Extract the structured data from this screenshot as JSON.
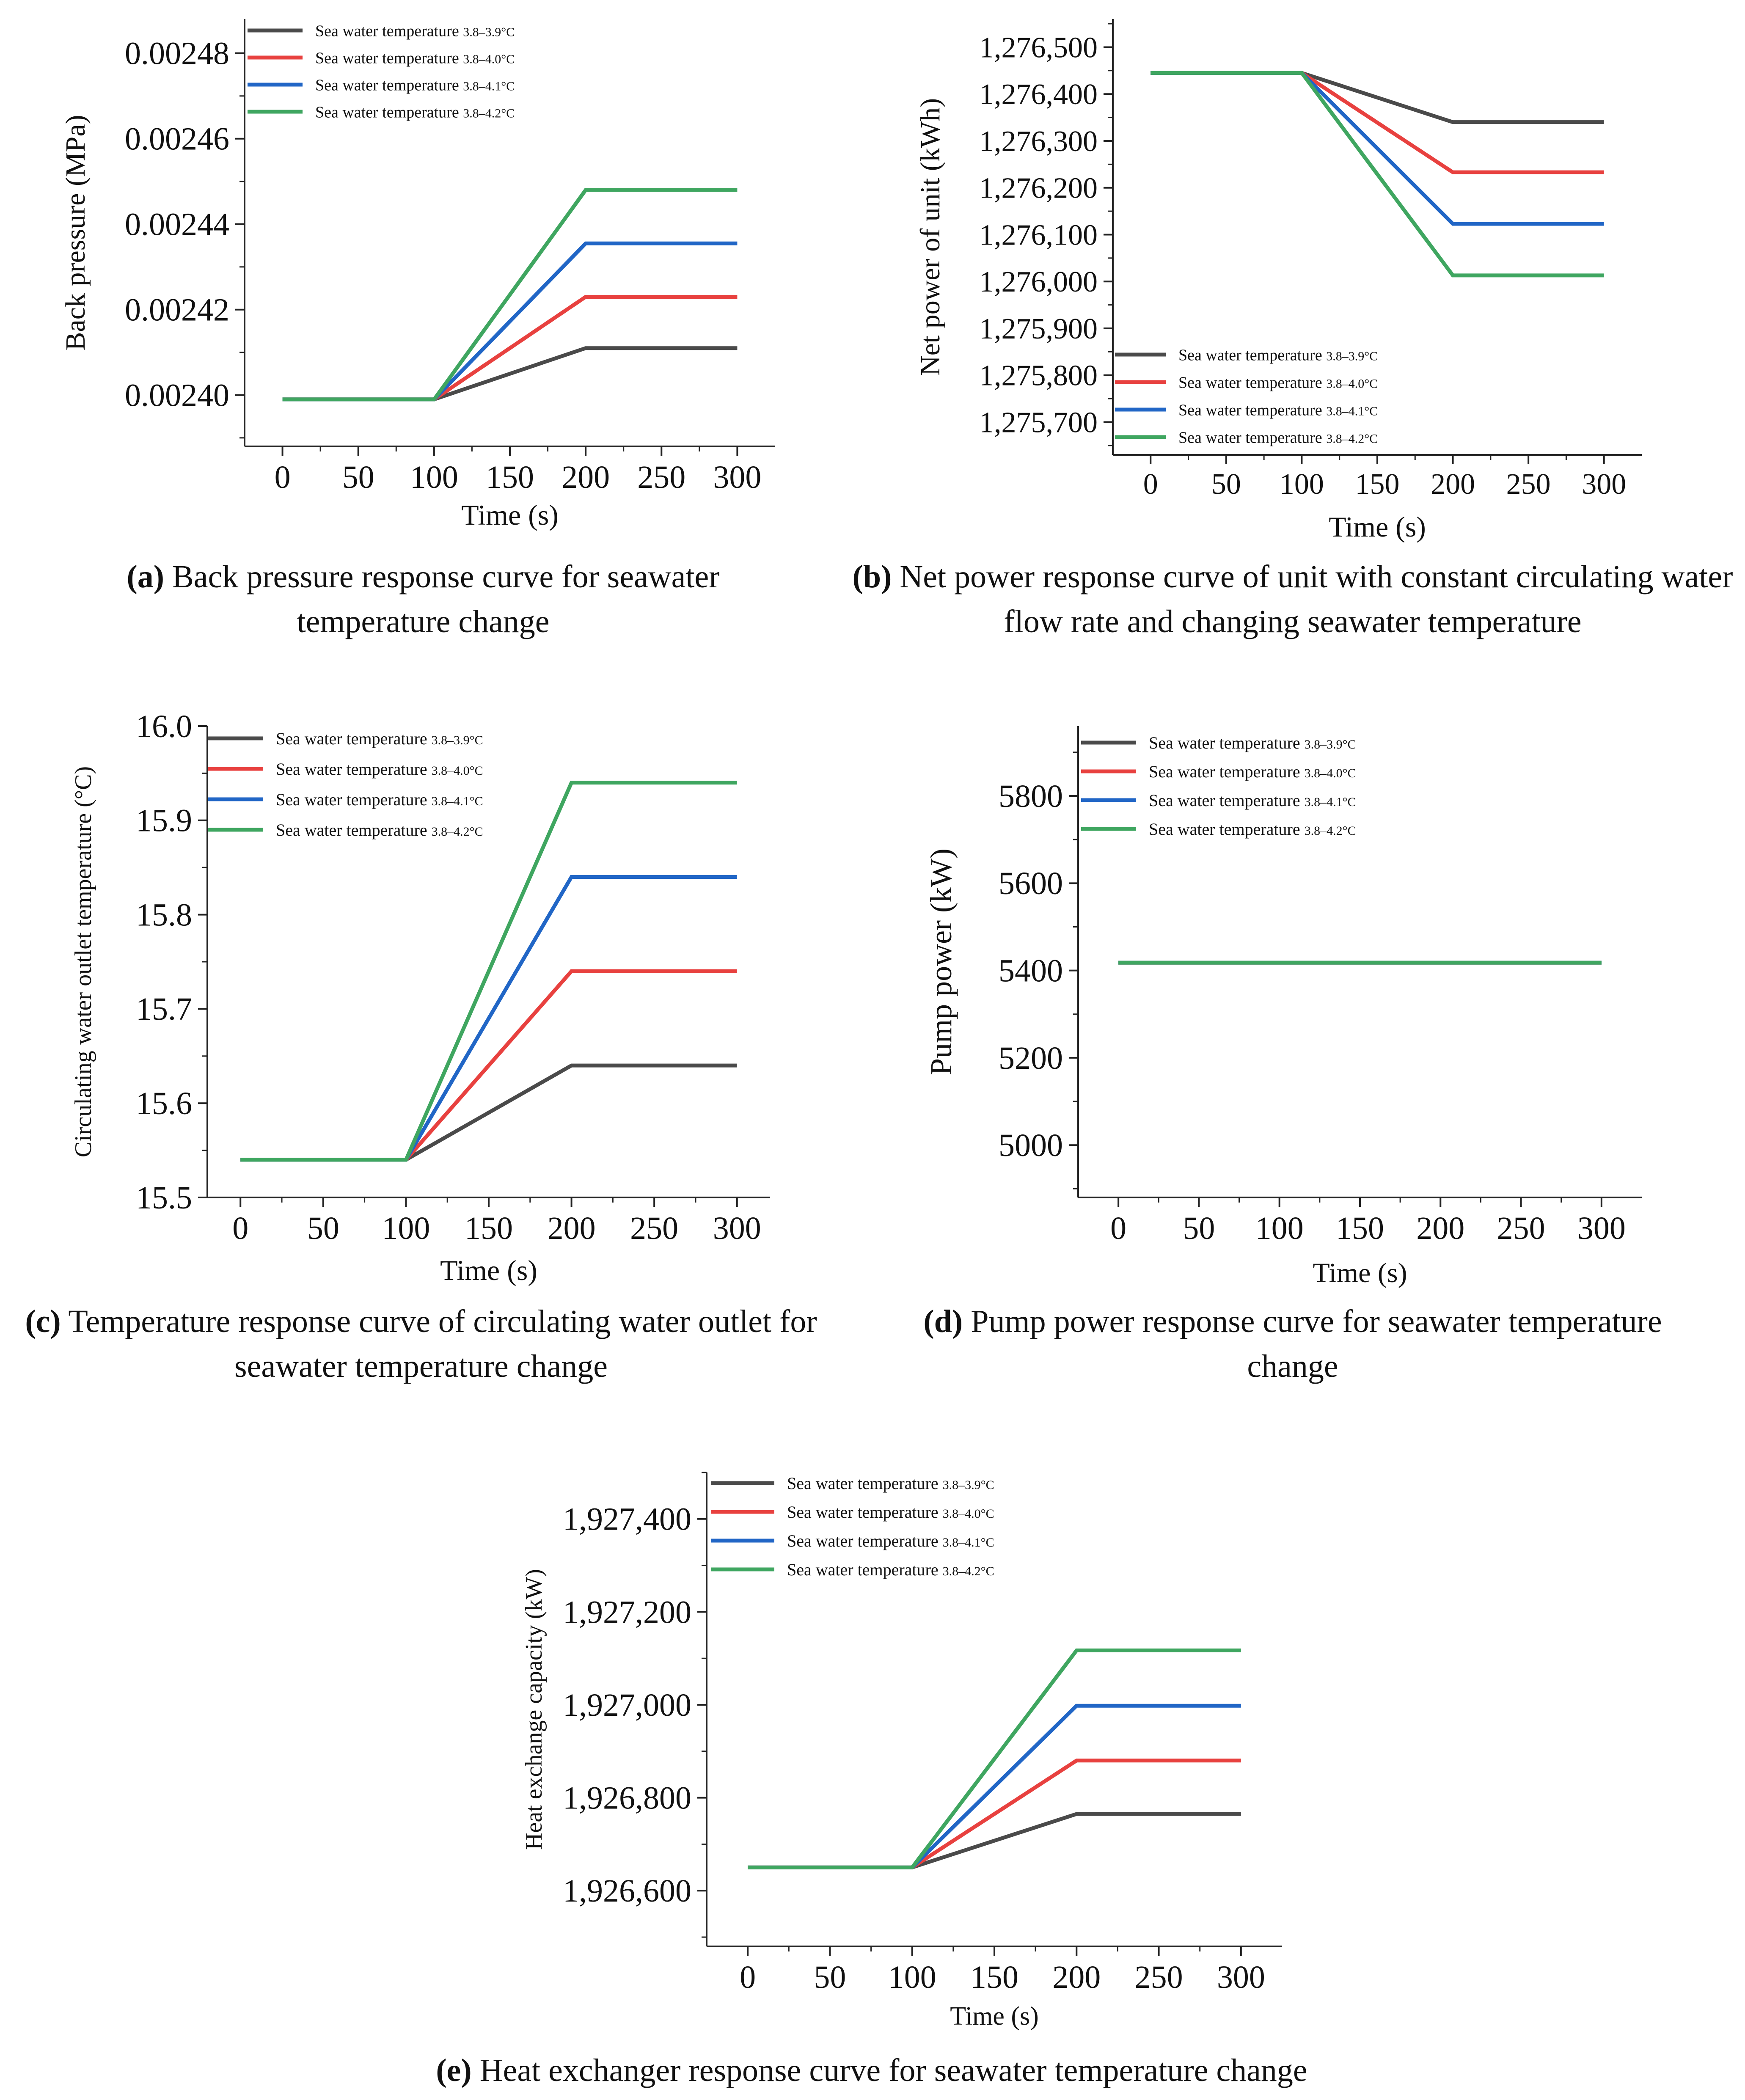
{
  "colors": {
    "s1": "#4a4a4a",
    "s2": "#e8413f",
    "s3": "#2166c6",
    "s4": "#3fa660",
    "axis": "#222222"
  },
  "legend_labels": {
    "name": "Sea water temperature",
    "ranges": [
      "3.8–3.9°C",
      "3.8–4.0°C",
      "3.8–4.1°C",
      "3.8–4.2°C"
    ]
  },
  "chart_data": [
    {
      "id": "a",
      "type": "line",
      "xlabel": "Time (s)",
      "ylabel": "Back pressure (MPa)",
      "xlim": [
        -25,
        325
      ],
      "ylim": [
        0.002388,
        0.002488
      ],
      "xticks": [
        0,
        50,
        100,
        150,
        200,
        250,
        300
      ],
      "xtick_labels": [
        "0",
        "50",
        "100",
        "150",
        "200",
        "250",
        "300"
      ],
      "yticks": [
        0.0024,
        0.00242,
        0.00244,
        0.00246,
        0.00248
      ],
      "ytick_labels": [
        "0.00240",
        "0.00242",
        "0.00244",
        "0.00246",
        "0.00248"
      ],
      "legend": "top-left",
      "x": [
        0,
        100,
        200,
        300
      ],
      "series": [
        {
          "name": "Sea water temperature 3.8–3.9°C",
          "values": [
            0.002399,
            0.002399,
            0.002411,
            0.002411
          ]
        },
        {
          "name": "Sea water temperature 3.8–4.0°C",
          "values": [
            0.002399,
            0.002399,
            0.002423,
            0.002423
          ]
        },
        {
          "name": "Sea water temperature 3.8–4.1°C",
          "values": [
            0.002399,
            0.002399,
            0.0024355,
            0.0024355
          ]
        },
        {
          "name": "Sea water temperature 3.8–4.2°C",
          "values": [
            0.002399,
            0.002399,
            0.002448,
            0.002448
          ]
        }
      ],
      "caption_label": "(a)",
      "caption_text": "Back pressure response curve for seawater temperature change"
    },
    {
      "id": "b",
      "type": "line",
      "xlabel": "Time (s)",
      "ylabel": "Net power of unit (kWh)",
      "xlim": [
        -25,
        325
      ],
      "ylim": [
        1275630,
        1276560
      ],
      "xticks": [
        0,
        50,
        100,
        150,
        200,
        250,
        300
      ],
      "xtick_labels": [
        "0",
        "50",
        "100",
        "150",
        "200",
        "250",
        "300"
      ],
      "yticks": [
        1275700,
        1275800,
        1275900,
        1276000,
        1276100,
        1276200,
        1276300,
        1276400,
        1276500
      ],
      "ytick_labels": [
        "1,275,700",
        "1,275,800",
        "1,275,900",
        "1,276,000",
        "1,276,100",
        "1,276,200",
        "1,276,300",
        "1,276,400",
        "1,276,500"
      ],
      "legend": "bottom-left",
      "x": [
        0,
        100,
        200,
        300
      ],
      "series": [
        {
          "name": "Sea water temperature 3.8–3.9°C",
          "values": [
            1276445,
            1276445,
            1276340,
            1276340
          ]
        },
        {
          "name": "Sea water temperature 3.8–4.0°C",
          "values": [
            1276445,
            1276445,
            1276233,
            1276233
          ]
        },
        {
          "name": "Sea water temperature 3.8–4.1°C",
          "values": [
            1276445,
            1276445,
            1276123,
            1276123
          ]
        },
        {
          "name": "Sea water temperature 3.8–4.2°C",
          "values": [
            1276445,
            1276445,
            1276013,
            1276013
          ]
        }
      ],
      "caption_label": "(b)",
      "caption_text": "Net power response curve of unit with constant circulating water flow rate and changing seawater temperature"
    },
    {
      "id": "c",
      "type": "line",
      "xlabel": "Time (s)",
      "ylabel": "Circulating water outlet temperature (°C)",
      "xlim": [
        -20,
        320
      ],
      "ylim": [
        15.5,
        16.0
      ],
      "xticks": [
        0,
        50,
        100,
        150,
        200,
        250,
        300
      ],
      "xtick_labels": [
        "0",
        "50",
        "100",
        "150",
        "200",
        "250",
        "300"
      ],
      "yticks": [
        15.5,
        15.6,
        15.7,
        15.8,
        15.9,
        16.0
      ],
      "ytick_labels": [
        "15.5",
        "15.6",
        "15.7",
        "15.8",
        "15.9",
        "16.0"
      ],
      "legend": "top-left",
      "x": [
        0,
        100,
        200,
        300
      ],
      "series": [
        {
          "name": "Sea water temperature 3.8–3.9°C",
          "values": [
            15.54,
            15.54,
            15.64,
            15.64
          ]
        },
        {
          "name": "Sea water temperature 3.8–4.0°C",
          "values": [
            15.54,
            15.54,
            15.74,
            15.74
          ]
        },
        {
          "name": "Sea water temperature 3.8–4.1°C",
          "values": [
            15.54,
            15.54,
            15.84,
            15.84
          ]
        },
        {
          "name": "Sea water temperature 3.8–4.2°C",
          "values": [
            15.54,
            15.54,
            15.94,
            15.94
          ]
        }
      ],
      "caption_label": "(c)",
      "caption_text": "Temperature response curve of circulating water outlet for seawater temperature change"
    },
    {
      "id": "d",
      "type": "line",
      "xlabel": "Time (s)",
      "ylabel": "Pump power (kW)",
      "xlim": [
        -25,
        325
      ],
      "ylim": [
        4880,
        5960
      ],
      "xticks": [
        0,
        50,
        100,
        150,
        200,
        250,
        300
      ],
      "xtick_labels": [
        "0",
        "50",
        "100",
        "150",
        "200",
        "250",
        "300"
      ],
      "yticks": [
        5000,
        5200,
        5400,
        5600,
        5800
      ],
      "ytick_labels": [
        "5000",
        "5200",
        "5400",
        "5600",
        "5800"
      ],
      "legend": "top-left",
      "x": [
        0,
        100,
        200,
        300
      ],
      "series": [
        {
          "name": "Sea water temperature 3.8–3.9°C",
          "values": [
            5418,
            5418,
            5418,
            5418
          ]
        },
        {
          "name": "Sea water temperature 3.8–4.0°C",
          "values": [
            5418,
            5418,
            5418,
            5418
          ]
        },
        {
          "name": "Sea water temperature 3.8–4.1°C",
          "values": [
            5418,
            5418,
            5418,
            5418
          ]
        },
        {
          "name": "Sea water temperature 3.8–4.2°C",
          "values": [
            5418,
            5418,
            5418,
            5418
          ]
        }
      ],
      "caption_label": "(d)",
      "caption_text": "Pump power response curve for seawater temperature change"
    },
    {
      "id": "e",
      "type": "line",
      "xlabel": "Time (s)",
      "ylabel": "Heat exchange capacity (kW)",
      "xlim": [
        -25,
        325
      ],
      "ylim": [
        1926480,
        1927500
      ],
      "xticks": [
        0,
        50,
        100,
        150,
        200,
        250,
        300
      ],
      "xtick_labels": [
        "0",
        "50",
        "100",
        "150",
        "200",
        "250",
        "300"
      ],
      "yticks": [
        1926600,
        1926800,
        1927000,
        1927200,
        1927400
      ],
      "ytick_labels": [
        "1,926,600",
        "1,926,800",
        "1,927,000",
        "1,927,200",
        "1,927,400"
      ],
      "legend": "top-left",
      "x": [
        0,
        100,
        200,
        300
      ],
      "series": [
        {
          "name": "Sea water temperature 3.8–3.9°C",
          "values": [
            1926650,
            1926650,
            1926765,
            1926765
          ]
        },
        {
          "name": "Sea water temperature 3.8–4.0°C",
          "values": [
            1926650,
            1926650,
            1926880,
            1926880
          ]
        },
        {
          "name": "Sea water temperature 3.8–4.1°C",
          "values": [
            1926650,
            1926650,
            1926998,
            1926998
          ]
        },
        {
          "name": "Sea water temperature 3.8–4.2°C",
          "values": [
            1926650,
            1926650,
            1927117,
            1927117
          ]
        }
      ],
      "caption_label": "(e)",
      "caption_text": "Heat exchanger response curve for seawater temperature change"
    }
  ]
}
